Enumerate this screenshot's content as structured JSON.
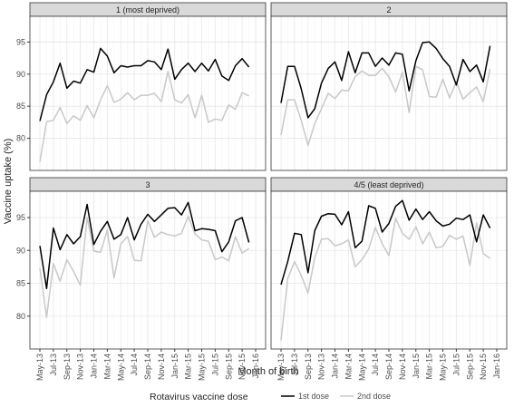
{
  "axis_labels": {
    "x": "Month of birth",
    "y": "Vaccine uptake (%)"
  },
  "legend": {
    "title": "Rotavirus vaccine dose"
  },
  "chart_data": [
    {
      "type": "line",
      "title": "1 (most deprived)",
      "categories": [
        "May-13",
        null,
        "Jul-13",
        null,
        "Sep-13",
        null,
        "Nov-13",
        null,
        "Jan-14",
        null,
        "Mar-14",
        null,
        "May-14",
        null,
        "Jul-14",
        null,
        "Sep-14",
        null,
        "Nov-14",
        null,
        "Jan-15",
        null,
        "Mar-15",
        null,
        "May-15",
        null,
        "Jul-15",
        null,
        "Sep-15",
        null,
        "Nov-15",
        null,
        "Jan-16"
      ],
      "series": [
        {
          "name": "1st dose",
          "color": "#000000",
          "values": [
            82.7,
            86.8,
            88.8,
            91.7,
            87.8,
            88.9,
            88.6,
            90.7,
            90.3,
            94.0,
            92.8,
            90.2,
            91.3,
            91.1,
            91.3,
            91.3,
            92.1,
            91.9,
            90.7,
            93.9,
            89.2,
            90.7,
            91.7,
            90.4,
            91.7,
            90.5,
            92.3,
            89.7,
            89.0,
            91.3,
            92.4,
            91.1,
            null
          ]
        },
        {
          "name": "2nd dose",
          "color": "#c8c8c8",
          "values": [
            76.3,
            82.6,
            82.8,
            84.8,
            82.3,
            83.5,
            82.8,
            85.1,
            83.2,
            86.0,
            88.2,
            85.6,
            86.1,
            87.1,
            86.0,
            86.7,
            86.7,
            87.0,
            85.7,
            90.4,
            86.0,
            85.5,
            86.8,
            83.2,
            86.7,
            82.5,
            83.0,
            82.8,
            85.2,
            84.5,
            87.1,
            86.6,
            null
          ]
        }
      ],
      "ylim": [
        75,
        99
      ],
      "yticks": [
        80,
        85,
        90,
        95
      ],
      "grid": true
    },
    {
      "type": "line",
      "title": "2",
      "categories": [
        "May-13",
        null,
        "Jul-13",
        null,
        "Sep-13",
        null,
        "Nov-13",
        null,
        "Jan-14",
        null,
        "Mar-14",
        null,
        "May-14",
        null,
        "Jul-14",
        null,
        "Sep-14",
        null,
        "Nov-14",
        null,
        "Jan-15",
        null,
        "Mar-15",
        null,
        "May-15",
        null,
        "Jul-15",
        null,
        "Sep-15",
        null,
        "Nov-15",
        null,
        "Jan-16"
      ],
      "series": [
        {
          "name": "1st dose",
          "color": "#000000",
          "values": [
            85.5,
            91.2,
            91.2,
            87.7,
            83.2,
            84.6,
            88.6,
            90.9,
            91.9,
            89.0,
            93.5,
            90.2,
            93.3,
            93.3,
            91.2,
            92.5,
            91.4,
            93.3,
            93.1,
            87.4,
            92.1,
            94.9,
            95.0,
            94.0,
            92.4,
            91.2,
            88.3,
            92.3,
            90.4,
            91.4,
            88.8,
            94.4,
            null
          ]
        },
        {
          "name": "2nd dose",
          "color": "#c8c8c8",
          "values": [
            80.5,
            86.0,
            86.0,
            82.8,
            78.9,
            82.3,
            84.6,
            87.0,
            86.2,
            87.5,
            87.4,
            89.6,
            90.5,
            89.8,
            89.8,
            90.9,
            89.6,
            87.2,
            90.3,
            84.0,
            91.2,
            90.7,
            86.5,
            86.4,
            89.2,
            86.3,
            88.8,
            86.1,
            87.1,
            88.0,
            85.7,
            90.8,
            null
          ]
        }
      ],
      "ylim": [
        75,
        99
      ],
      "yticks": [
        80,
        85,
        90,
        95
      ],
      "grid": true
    },
    {
      "type": "line",
      "title": "3",
      "categories": [
        "May-13",
        null,
        "Jul-13",
        null,
        "Sep-13",
        null,
        "Nov-13",
        null,
        "Jan-14",
        null,
        "Mar-14",
        null,
        "May-14",
        null,
        "Jul-14",
        null,
        "Sep-14",
        null,
        "Nov-14",
        null,
        "Jan-15",
        null,
        "Mar-15",
        null,
        "May-15",
        null,
        "Jul-15",
        null,
        "Sep-15",
        null,
        "Nov-15",
        null,
        "Jan-16"
      ],
      "series": [
        {
          "name": "1st dose",
          "color": "#000000",
          "values": [
            90.7,
            84.2,
            93.4,
            90.1,
            92.4,
            91.0,
            92.1,
            97.0,
            90.9,
            92.9,
            94.4,
            91.7,
            92.4,
            95.0,
            91.6,
            94.0,
            95.5,
            94.4,
            95.4,
            96.4,
            96.5,
            95.4,
            97.3,
            93.0,
            93.3,
            93.2,
            93.0,
            89.8,
            91.3,
            94.5,
            95.0,
            91.2,
            null
          ]
        },
        {
          "name": "2nd dose",
          "color": "#c8c8c8",
          "values": [
            87.3,
            79.8,
            88.0,
            85.3,
            88.6,
            86.8,
            84.7,
            95.0,
            89.9,
            89.7,
            93.1,
            85.8,
            91.0,
            92.1,
            88.5,
            88.4,
            94.5,
            92.0,
            92.8,
            92.4,
            92.2,
            92.6,
            95.2,
            92.5,
            91.6,
            91.4,
            88.6,
            89.0,
            88.4,
            92.1,
            89.6,
            90.3,
            null
          ]
        }
      ],
      "ylim": [
        75,
        99
      ],
      "yticks": [
        80,
        85,
        90,
        95
      ],
      "grid": true
    },
    {
      "type": "line",
      "title": "4/5 (least deprived)",
      "categories": [
        "May-13",
        null,
        "Jul-13",
        null,
        "Sep-13",
        null,
        "Nov-13",
        null,
        "Jan-14",
        null,
        "Mar-14",
        null,
        "May-14",
        null,
        "Jul-14",
        null,
        "Sep-14",
        null,
        "Nov-14",
        null,
        "Jan-15",
        null,
        "Mar-15",
        null,
        "May-15",
        null,
        "Jul-15",
        null,
        "Sep-15",
        null,
        "Nov-15",
        null,
        "Jan-16"
      ],
      "series": [
        {
          "name": "1st dose",
          "color": "#000000",
          "values": [
            84.8,
            88.3,
            92.6,
            92.4,
            86.6,
            93.0,
            95.2,
            95.6,
            95.5,
            93.9,
            95.9,
            90.4,
            91.4,
            96.8,
            96.4,
            92.8,
            94.1,
            96.7,
            97.6,
            94.6,
            96.3,
            94.7,
            95.9,
            94.5,
            93.7,
            94.0,
            94.9,
            94.7,
            95.4,
            91.3,
            95.4,
            93.4,
            null
          ]
        },
        {
          "name": "2nd dose",
          "color": "#c8c8c8",
          "values": [
            76.3,
            85.7,
            88.3,
            86.2,
            83.5,
            88.9,
            91.7,
            91.8,
            90.7,
            91.0,
            91.6,
            87.5,
            88.6,
            90.2,
            93.5,
            91.0,
            89.2,
            94.9,
            92.6,
            91.7,
            93.6,
            91.0,
            92.8,
            90.4,
            90.6,
            92.3,
            91.7,
            92.2,
            87.7,
            94.2,
            89.5,
            88.8,
            null
          ]
        }
      ],
      "ylim": [
        75,
        99
      ],
      "yticks": [
        80,
        85,
        90,
        95
      ],
      "grid": true
    }
  ]
}
